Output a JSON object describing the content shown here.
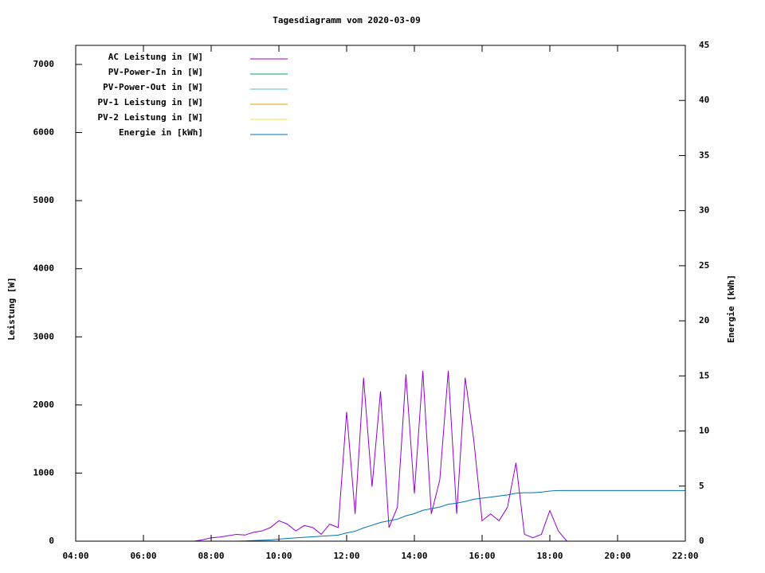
{
  "chart_data": {
    "type": "line",
    "title": "Tagesdiagramm vom 2020-03-09",
    "y_label": "Leistung [W]",
    "y2_label": "Energie [kWh]",
    "legend": "top-left",
    "x": [
      7.5,
      7.75,
      8,
      8.25,
      8.5,
      8.75,
      9,
      9.25,
      9.5,
      9.75,
      10,
      10.25,
      10.5,
      10.75,
      11,
      11.25,
      11.5,
      11.75,
      12,
      12.25,
      12.5,
      12.75,
      13,
      13.25,
      13.5,
      13.75,
      14,
      14.25,
      14.5,
      14.75,
      15,
      15.25,
      15.5,
      15.75,
      16,
      16.25,
      16.5,
      16.75,
      17,
      17.25,
      17.5,
      17.75,
      18,
      18.25,
      18.5,
      18.75,
      19,
      22
    ],
    "xlim": [
      4,
      22
    ],
    "xticks": [
      {
        "value": 4,
        "label": "04:00"
      },
      {
        "value": 6,
        "label": "06:00"
      },
      {
        "value": 8,
        "label": "08:00"
      },
      {
        "value": 10,
        "label": "10:00"
      },
      {
        "value": 12,
        "label": "12:00"
      },
      {
        "value": 14,
        "label": "14:00"
      },
      {
        "value": 16,
        "label": "16:00"
      },
      {
        "value": 18,
        "label": "18:00"
      },
      {
        "value": 20,
        "label": "20:00"
      },
      {
        "value": 22,
        "label": "22:00"
      }
    ],
    "ylim": [
      0,
      7280
    ],
    "yticks": [
      0,
      1000,
      2000,
      3000,
      4000,
      5000,
      6000,
      7000
    ],
    "y2lim": [
      0,
      45
    ],
    "y2ticks": [
      0,
      5,
      10,
      15,
      20,
      25,
      30,
      35,
      40,
      45
    ],
    "series": [
      {
        "name": "AC Leistung in [W]",
        "color": "#9400d3",
        "values": [
          0,
          20,
          50,
          60,
          80,
          100,
          90,
          130,
          150,
          200,
          300,
          250,
          150,
          230,
          200,
          100,
          250,
          200,
          1900,
          400,
          2400,
          800,
          2200,
          200,
          500,
          2450,
          700,
          2500,
          400,
          900,
          2500,
          400,
          2400,
          1500,
          300,
          400,
          300,
          500,
          1150,
          100,
          50,
          100,
          450,
          150,
          0,
          null,
          null,
          null
        ]
      },
      {
        "name": "PV-Power-In in [W]",
        "color": "#009e73",
        "values": [
          0,
          0,
          0,
          0,
          0,
          0,
          0,
          0,
          0,
          0,
          0,
          0,
          0,
          0,
          0,
          0,
          0,
          0,
          0,
          0,
          0,
          0,
          0,
          0,
          0,
          0,
          0,
          0,
          0,
          0,
          0,
          0,
          0,
          0,
          0,
          0,
          0,
          0,
          0,
          0,
          0,
          0,
          0,
          0,
          0,
          0,
          0,
          0
        ]
      },
      {
        "name": "PV-Power-Out in [W]",
        "color": "#56b4e9",
        "values": [
          0,
          0,
          0,
          0,
          0,
          0,
          0,
          0,
          0,
          0,
          0,
          0,
          0,
          0,
          0,
          0,
          0,
          0,
          0,
          0,
          0,
          0,
          0,
          0,
          0,
          0,
          0,
          0,
          0,
          0,
          0,
          0,
          0,
          0,
          0,
          0,
          0,
          0,
          0,
          0,
          0,
          0,
          0,
          0,
          0,
          0,
          0,
          0
        ]
      },
      {
        "name": "PV-1 Leistung in [W]",
        "color": "#e69f00",
        "values": [
          0,
          0,
          0,
          0,
          0,
          0,
          0,
          0,
          0,
          0,
          0,
          0,
          0,
          0,
          0,
          0,
          0,
          0,
          0,
          0,
          0,
          0,
          0,
          0,
          0,
          0,
          0,
          0,
          0,
          0,
          0,
          0,
          0,
          0,
          0,
          0,
          0,
          0,
          0,
          0,
          0,
          0,
          0,
          0,
          0,
          0,
          0,
          0
        ]
      },
      {
        "name": "PV-2 Leistung in [W]",
        "color": "#f0e442",
        "values": [
          0,
          0,
          0,
          0,
          0,
          0,
          0,
          0,
          0,
          0,
          0,
          0,
          0,
          0,
          0,
          0,
          0,
          0,
          0,
          0,
          0,
          0,
          0,
          0,
          0,
          0,
          0,
          0,
          0,
          0,
          0,
          0,
          0,
          0,
          0,
          0,
          0,
          0,
          0,
          0,
          0,
          0,
          0,
          0,
          0,
          0,
          0,
          0
        ]
      },
      {
        "name": "Energie in [kWh]",
        "color": "#0072b2",
        "axis": "y2",
        "values": [
          0,
          0,
          0,
          0,
          0,
          0,
          0.02,
          0.05,
          0.08,
          0.12,
          0.18,
          0.25,
          0.3,
          0.35,
          0.4,
          0.45,
          0.5,
          0.55,
          0.75,
          0.9,
          1.2,
          1.45,
          1.7,
          1.85,
          2.0,
          2.3,
          2.5,
          2.8,
          2.95,
          3.1,
          3.35,
          3.45,
          3.6,
          3.8,
          3.9,
          4.0,
          4.1,
          4.2,
          4.35,
          4.4,
          4.4,
          4.45,
          4.55,
          4.6,
          4.6,
          4.6,
          4.6,
          4.6
        ]
      }
    ]
  }
}
